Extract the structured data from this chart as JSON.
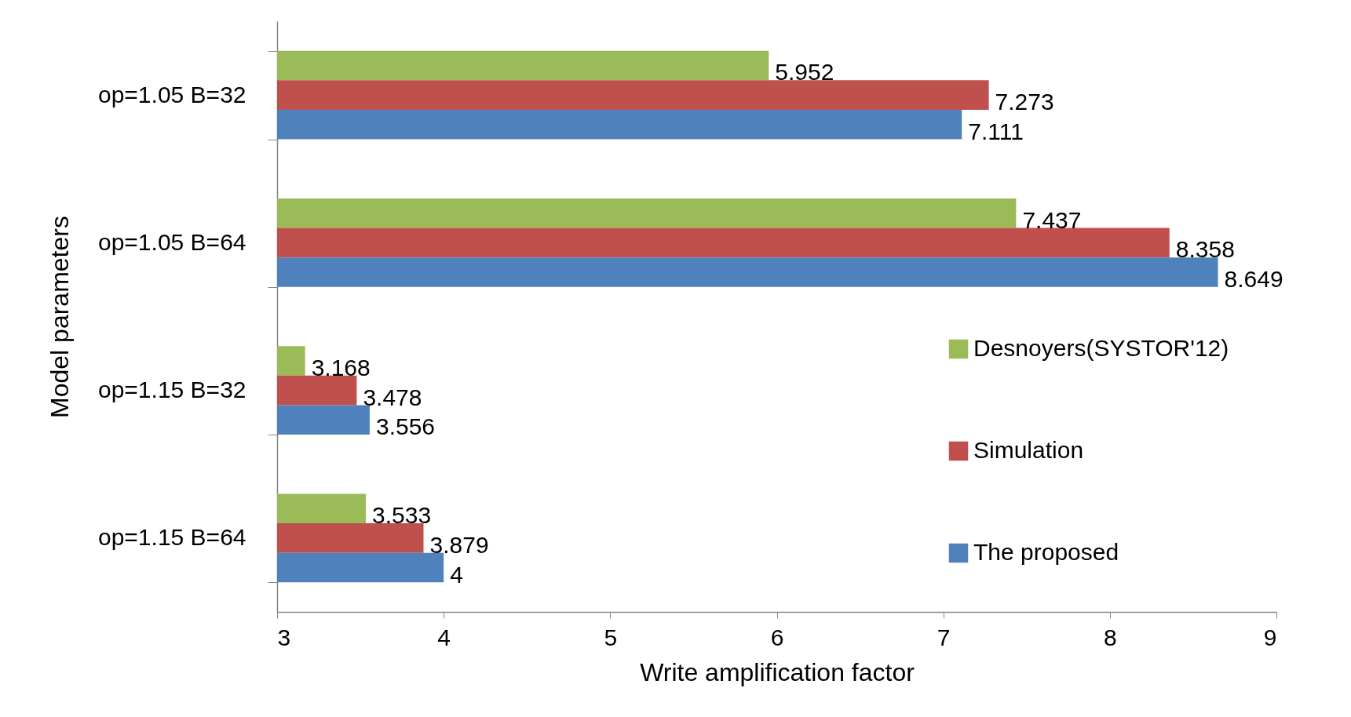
{
  "chart_data": {
    "type": "bar",
    "orientation": "horizontal",
    "xlabel": "Write amplification factor",
    "ylabel": "Model parameters",
    "categories": [
      "op=1.05 B=32",
      "op=1.05 B=64",
      "op=1.15 B=32",
      "op=1.15 B=64"
    ],
    "series": [
      {
        "name": "Desnoyers(SYSTOR'12)",
        "color": "#9bbb59",
        "values": [
          5.952,
          7.437,
          3.168,
          3.533
        ]
      },
      {
        "name": "Simulation",
        "color": "#c0504d",
        "values": [
          7.273,
          8.358,
          3.478,
          3.879
        ]
      },
      {
        "name": "The proposed",
        "color": "#4f81bd",
        "values": [
          7.111,
          8.649,
          3.556,
          4
        ]
      }
    ],
    "xlim": [
      3,
      9
    ],
    "xticks": [
      3,
      4,
      5,
      6,
      7,
      8,
      9
    ],
    "data_labels": true,
    "legend": "right",
    "grid": false
  }
}
